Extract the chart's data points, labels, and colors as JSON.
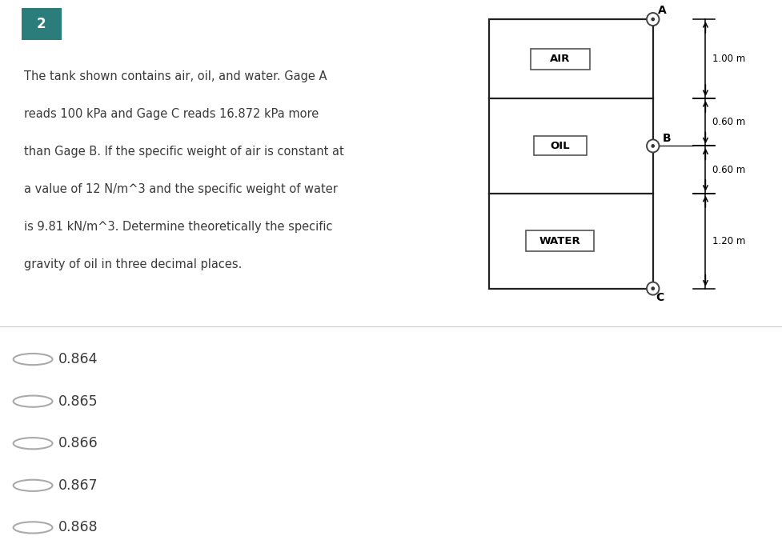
{
  "bg_color_panel": "#dce8ed",
  "bg_color_white": "#ffffff",
  "bg_color_right": "#f2f7f9",
  "number_badge_color": "#2a7d7b",
  "number_badge_text": "2",
  "problem_text_lines": [
    "The tank shown contains air, oil, and water. Gage A",
    "reads 100 kPa and Gage C reads 16.872 kPa more",
    "than Gage B. If the specific weight of air is constant at",
    "a value of 12 N/m^3 and the specific weight of water",
    "is 9.81 kN/m^3. Determine theoretically the specific",
    "gravity of oil in three decimal places."
  ],
  "choices": [
    "0.864",
    "0.865",
    "0.866",
    "0.867",
    "0.868"
  ],
  "text_color": "#3a3a3a",
  "tank_color": "#222222",
  "choice_circle_color": "#aaaaaa"
}
